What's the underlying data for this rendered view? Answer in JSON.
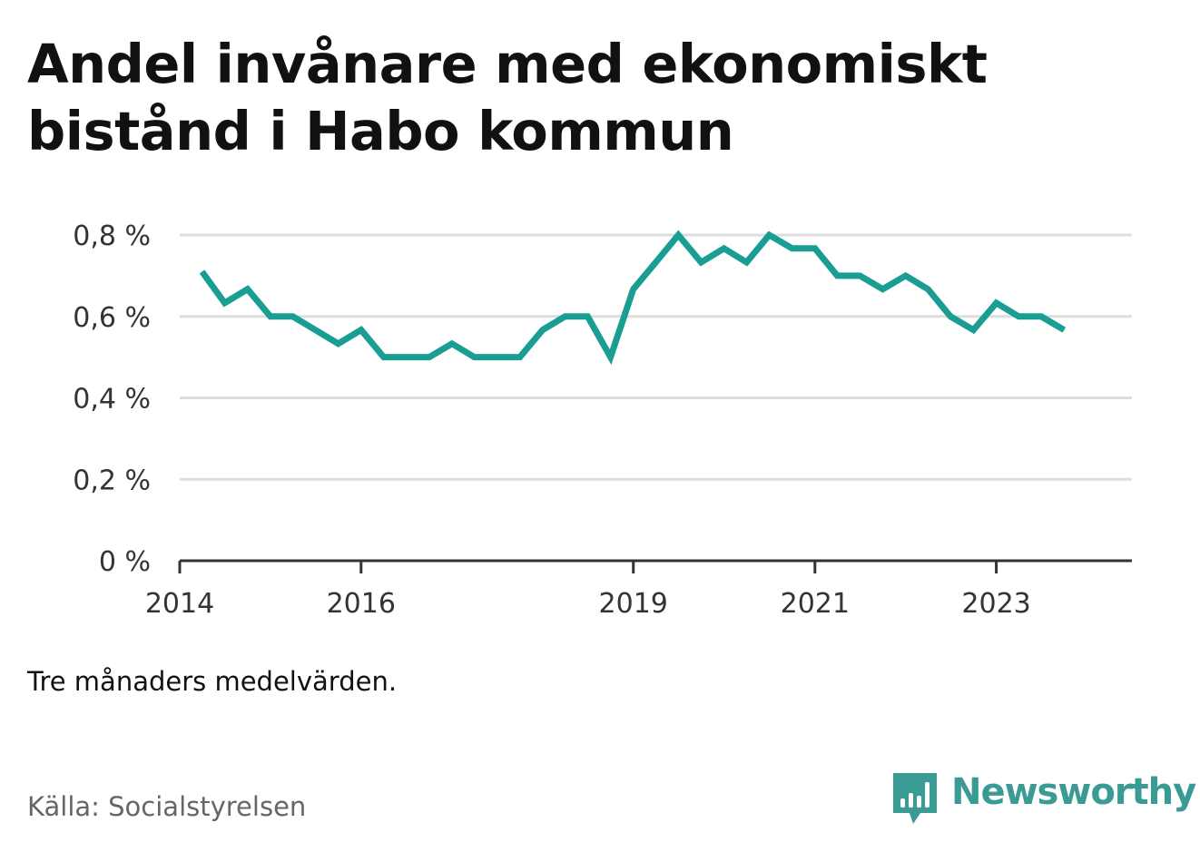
{
  "title": "Andel invånare med ekonomiskt bistånd i Habo kommun",
  "note": "Tre månaders medelvärden.",
  "source": "Källa: Socialstyrelsen",
  "brand": {
    "name": "Newsworthy",
    "icon": "newsworthy-logo-icon",
    "color": "#3a9b94"
  },
  "colors": {
    "line": "#1a9e93",
    "grid": "#dddddd",
    "axis": "#333333"
  },
  "chart_data": {
    "type": "line",
    "title": "Andel invånare med ekonomiskt bistånd i Habo kommun",
    "xlabel": "",
    "ylabel": "",
    "ylim": [
      0,
      0.8
    ],
    "yticks": [
      0,
      0.2,
      0.4,
      0.6,
      0.8
    ],
    "ytick_labels": [
      "0 %",
      "0,2 %",
      "0,4 %",
      "0,6 %",
      "0,8 %"
    ],
    "xlim": [
      "2014-01-01",
      "2024-06-30"
    ],
    "xticks": [
      "2014-01-01",
      "2016-01-01",
      "2019-01-01",
      "2021-01-01",
      "2023-01-01"
    ],
    "xtick_labels": [
      "2014",
      "2016",
      "2019",
      "2021",
      "2023"
    ],
    "grid": true,
    "series": [
      {
        "x": [
          "2014-04-01",
          "2014-07-01",
          "2014-10-01",
          "2015-01-01",
          "2015-04-01",
          "2015-07-01",
          "2015-10-01",
          "2016-01-01",
          "2016-04-01",
          "2016-07-01",
          "2016-10-01",
          "2017-01-01",
          "2017-04-01",
          "2017-07-01",
          "2017-10-01",
          "2018-01-01",
          "2018-04-01",
          "2018-07-01",
          "2018-10-01",
          "2019-01-01",
          "2019-04-01",
          "2019-07-01",
          "2019-10-01",
          "2020-01-01",
          "2020-04-01",
          "2020-07-01",
          "2020-10-01",
          "2021-01-01",
          "2021-04-01",
          "2021-07-01",
          "2021-10-01",
          "2022-01-01",
          "2022-04-01",
          "2022-07-01",
          "2022-10-01",
          "2023-01-01",
          "2023-04-01",
          "2023-07-01",
          "2023-10-01"
        ],
        "values": [
          0.71,
          0.633,
          0.667,
          0.6,
          0.6,
          0.567,
          0.533,
          0.567,
          0.5,
          0.5,
          0.5,
          0.533,
          0.5,
          0.5,
          0.5,
          0.567,
          0.6,
          0.6,
          0.5,
          0.667,
          0.733,
          0.8,
          0.733,
          0.767,
          0.733,
          0.8,
          0.767,
          0.767,
          0.7,
          0.7,
          0.667,
          0.7,
          0.667,
          0.6,
          0.567,
          0.633,
          0.6,
          0.6,
          0.567
        ]
      }
    ]
  }
}
